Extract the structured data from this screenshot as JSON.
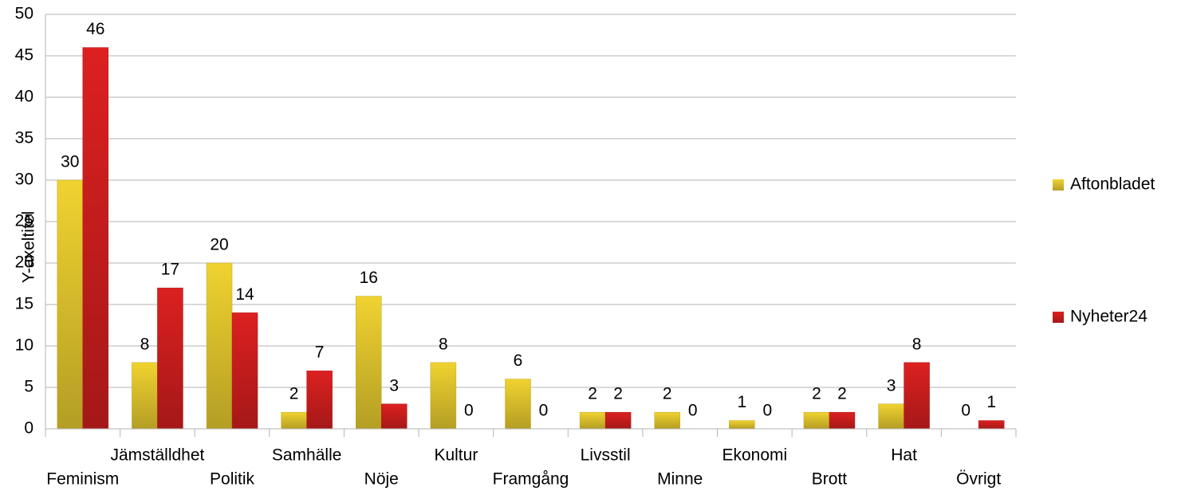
{
  "chart_data": {
    "type": "bar",
    "y_axis_label": "Y-axeltitel",
    "categories": [
      "Feminism",
      "Jämställdhet",
      "Politik",
      "Samhälle",
      "Nöje",
      "Kultur",
      "Framgång",
      "Livsstil",
      "Minne",
      "Ekonomi",
      "Brott",
      "Hat",
      "Övrigt"
    ],
    "series": [
      {
        "name": "Aftonbladet",
        "color": "#f0d230",
        "values": [
          30,
          8,
          20,
          2,
          16,
          8,
          6,
          2,
          2,
          1,
          2,
          3,
          0
        ]
      },
      {
        "name": "Nyheter24",
        "color": "#dc2020",
        "values": [
          46,
          17,
          14,
          7,
          3,
          0,
          0,
          2,
          0,
          0,
          2,
          8,
          1
        ]
      }
    ],
    "ylim": [
      0,
      50
    ],
    "yticks": [
      0,
      5,
      10,
      15,
      20,
      25,
      30,
      35,
      40,
      45,
      50
    ],
    "grid": true,
    "legend": "right",
    "data_labels": true
  }
}
